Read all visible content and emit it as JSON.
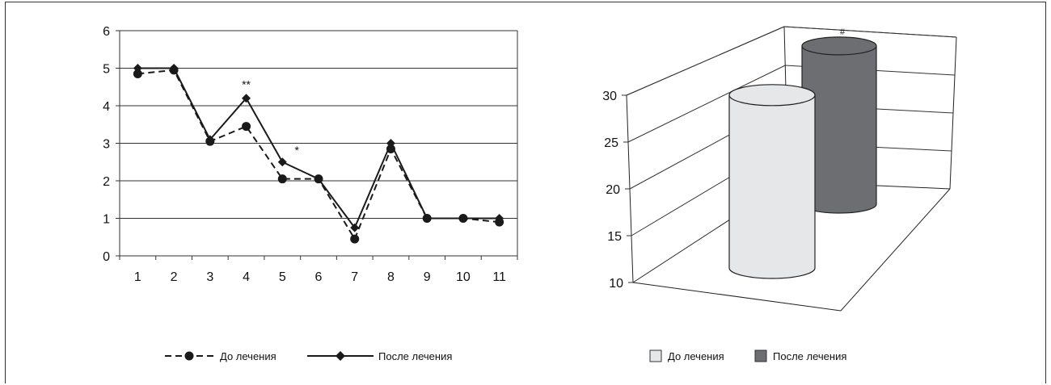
{
  "chart_data": [
    {
      "type": "line",
      "title": "",
      "xlabel": "",
      "ylabel": "",
      "categories": [
        "1",
        "2",
        "3",
        "4",
        "5",
        "6",
        "7",
        "8",
        "9",
        "10",
        "11"
      ],
      "ylim": [
        0,
        6
      ],
      "yticks": [
        "0",
        "1",
        "2",
        "3",
        "4",
        "5",
        "6"
      ],
      "grid": true,
      "legend_position": "bottom",
      "series": [
        {
          "name": "До лечения",
          "style": "dashed",
          "marker": "circle",
          "values": [
            4.85,
            4.95,
            3.05,
            3.45,
            2.05,
            2.05,
            0.45,
            2.85,
            1.0,
            1.0,
            0.9
          ]
        },
        {
          "name": "После лечения",
          "style": "solid",
          "marker": "diamond",
          "values": [
            5.0,
            5.0,
            3.1,
            4.2,
            2.5,
            2.05,
            0.75,
            3.0,
            1.0,
            1.0,
            1.0
          ]
        }
      ],
      "annotations": [
        {
          "category": "4",
          "text": "**"
        },
        {
          "category": "5",
          "text": "*"
        }
      ]
    },
    {
      "type": "bar",
      "title": "",
      "xlabel": "",
      "ylabel": "",
      "ylim": [
        10,
        30
      ],
      "yticks": [
        "10",
        "15",
        "20",
        "25",
        "30"
      ],
      "grid": true,
      "legend_position": "bottom",
      "series": [
        {
          "name": "До лечения",
          "color": "#e6e7e9",
          "values": [
            27
          ]
        },
        {
          "name": "После лечения",
          "color": "#6d6e71",
          "values": [
            28.5
          ]
        }
      ],
      "annotations": [
        {
          "series": "После лечения",
          "text": "#"
        }
      ]
    }
  ],
  "colors": {
    "line": "#1a1a1a",
    "grid": "#333333",
    "bar_light": "#e6e7e9",
    "bar_dark": "#6d6e71"
  }
}
